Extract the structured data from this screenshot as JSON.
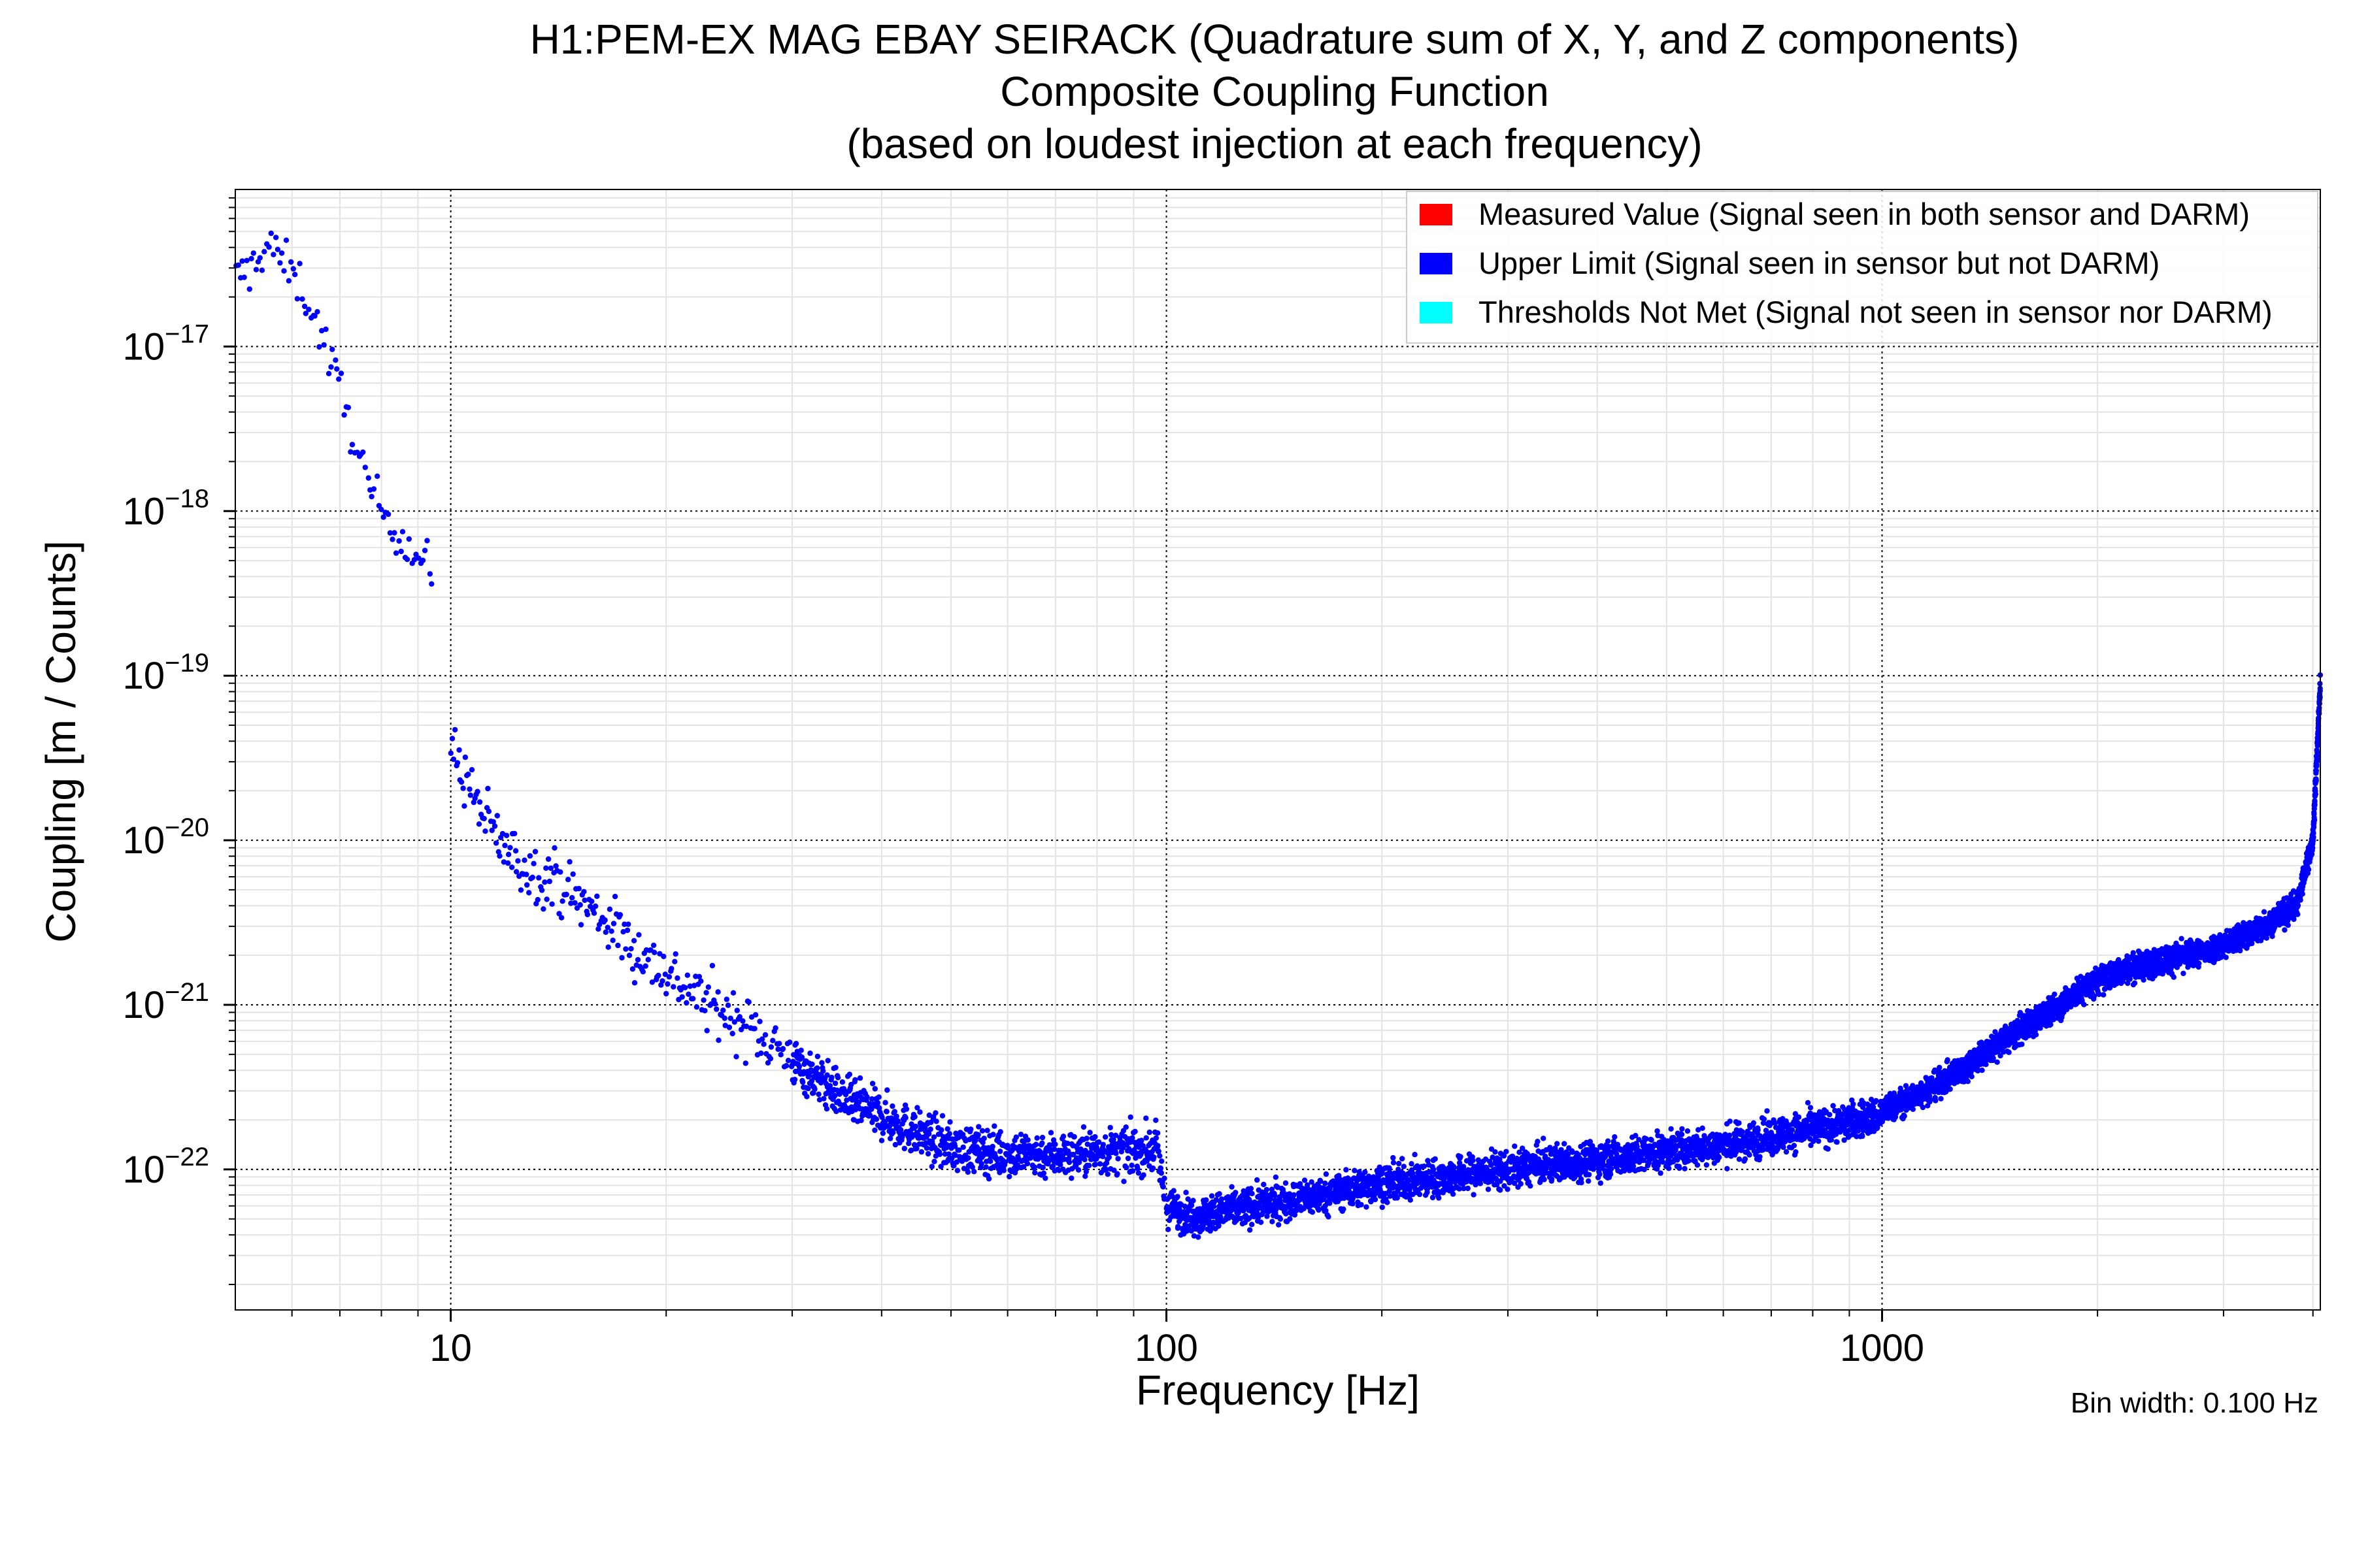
{
  "chart_data": {
    "type": "scatter",
    "title": "H1:PEM-EX MAG EBAY SEIRACK (Quadrature sum of X, Y, and Z components)",
    "subtitle": "Composite Coupling Function",
    "subtitle2": "(based on loudest injection at each frequency)",
    "xlabel": "Frequency [Hz]",
    "ylabel": "Coupling [m / Counts]",
    "xscale": "log",
    "yscale": "log",
    "xlim": [
      5,
      4096
    ],
    "ylim": [
      1.4e-23,
      9e-17
    ],
    "grid": true,
    "legend_position": "top-right",
    "x_ticks": [
      {
        "value": 10,
        "label": "10"
      },
      {
        "value": 100,
        "label": "100"
      },
      {
        "value": 1000,
        "label": "1000"
      }
    ],
    "y_ticks": [
      {
        "value": 1e-17,
        "base": "10",
        "exp": "−17"
      },
      {
        "value": 1e-18,
        "base": "10",
        "exp": "−18"
      },
      {
        "value": 1e-19,
        "base": "10",
        "exp": "−19"
      },
      {
        "value": 1e-20,
        "base": "10",
        "exp": "−20"
      },
      {
        "value": 1e-21,
        "base": "10",
        "exp": "−21"
      },
      {
        "value": 1e-22,
        "base": "10",
        "exp": "−22"
      }
    ],
    "legend": [
      {
        "label": "Measured Value (Signal seen in both sensor and DARM)",
        "color": "#ff0000"
      },
      {
        "label": "Upper Limit (Signal seen in sensor but not DARM)",
        "color": "#0000ff"
      },
      {
        "label": "Thresholds Not Met (Signal not seen in sensor nor DARM)",
        "color": "#00ffff"
      }
    ],
    "series": [
      {
        "name": "Upper Limit (Signal seen in sensor but not DARM)",
        "color": "#0000ff",
        "x": [
          5.0,
          5.2,
          5.4,
          5.6,
          5.8,
          6.0,
          6.2,
          6.4,
          6.6,
          6.8,
          7.0,
          7.2,
          7.4,
          7.6,
          7.8,
          8.0,
          8.2,
          8.4,
          8.6,
          8.8,
          9.0,
          9.2,
          9.4,
          10.0,
          10.3,
          10.6,
          11.0,
          11.5,
          12.0,
          12.5,
          13.0,
          14.0,
          15.0,
          16.0,
          17.0,
          18.0,
          20.0,
          22.0,
          25.0,
          28.0,
          30.0,
          33.0,
          36.0,
          40.0,
          45.0,
          50.0,
          60.0,
          70.0,
          80.0,
          90.0,
          97.0,
          100.0,
          105.0,
          110.0,
          118.0,
          125.0,
          140.0,
          160.0,
          180.0,
          200.0,
          250.0,
          300.0,
          350.0,
          400.0,
          450.0,
          500.0,
          600.0,
          700.0,
          800.0,
          900.0,
          1000.0,
          1010.0,
          1100.0,
          1200.0,
          1300.0,
          1400.0,
          1600.0,
          1800.0,
          2000.0,
          2200.0,
          2400.0,
          2600.0,
          2800.0,
          3000.0,
          3200.0,
          3400.0,
          3600.0,
          3800.0,
          4000.0,
          4096.0
        ],
        "y": [
          2.6e-17,
          2.8e-17,
          3.6e-17,
          4.2e-17,
          3.3e-17,
          2.8e-17,
          2.3e-17,
          1.6e-17,
          1.2e-17,
          8e-18,
          5.5e-18,
          3.6e-18,
          2.4e-18,
          1.6e-18,
          1.2e-18,
          1.05e-18,
          9e-19,
          8e-19,
          6.5e-19,
          5.8e-19,
          5.2e-19,
          4.8e-19,
          4.4e-19,
          3.7e-20,
          2.8e-20,
          2.2e-20,
          1.5e-20,
          1.1e-20,
          8.5e-21,
          7.2e-21,
          6.5e-21,
          5.8e-21,
          4.4e-21,
          3.6e-21,
          2.9e-21,
          2.2e-21,
          1.6e-21,
          1.15e-21,
          8.2e-22,
          6e-22,
          4.5e-22,
          3.4e-22,
          2.6e-22,
          2.1e-22,
          1.65e-22,
          1.35e-22,
          1.25e-22,
          1.22e-22,
          1.27e-22,
          1.3e-22,
          1.32e-22,
          6e-23,
          5.4e-23,
          5.2e-23,
          5.5e-23,
          5.8e-23,
          6.2e-23,
          6.8e-23,
          7.5e-23,
          8.2e-23,
          9e-23,
          1e-22,
          1.08e-22,
          1.15e-22,
          1.22e-22,
          1.28e-22,
          1.42e-22,
          1.58e-22,
          1.75e-22,
          1.95e-22,
          2.15e-22,
          2.3e-22,
          2.7e-22,
          3.3e-22,
          4.1e-22,
          5.2e-22,
          7.5e-22,
          1.05e-21,
          1.4e-21,
          1.65e-21,
          1.8e-21,
          1.95e-21,
          2.1e-21,
          2.3e-21,
          2.6e-21,
          3e-21,
          3.5e-21,
          4.1e-21,
          1e-20,
          9e-20
        ]
      },
      {
        "name": "Measured Value (Signal seen in both sensor and DARM)",
        "color": "#ff0000",
        "x": [],
        "y": []
      },
      {
        "name": "Thresholds Not Met (Signal not seen in sensor nor DARM)",
        "color": "#00ffff",
        "x": [],
        "y": []
      }
    ],
    "annotations": [
      "Bin width: 0.100 Hz"
    ]
  }
}
